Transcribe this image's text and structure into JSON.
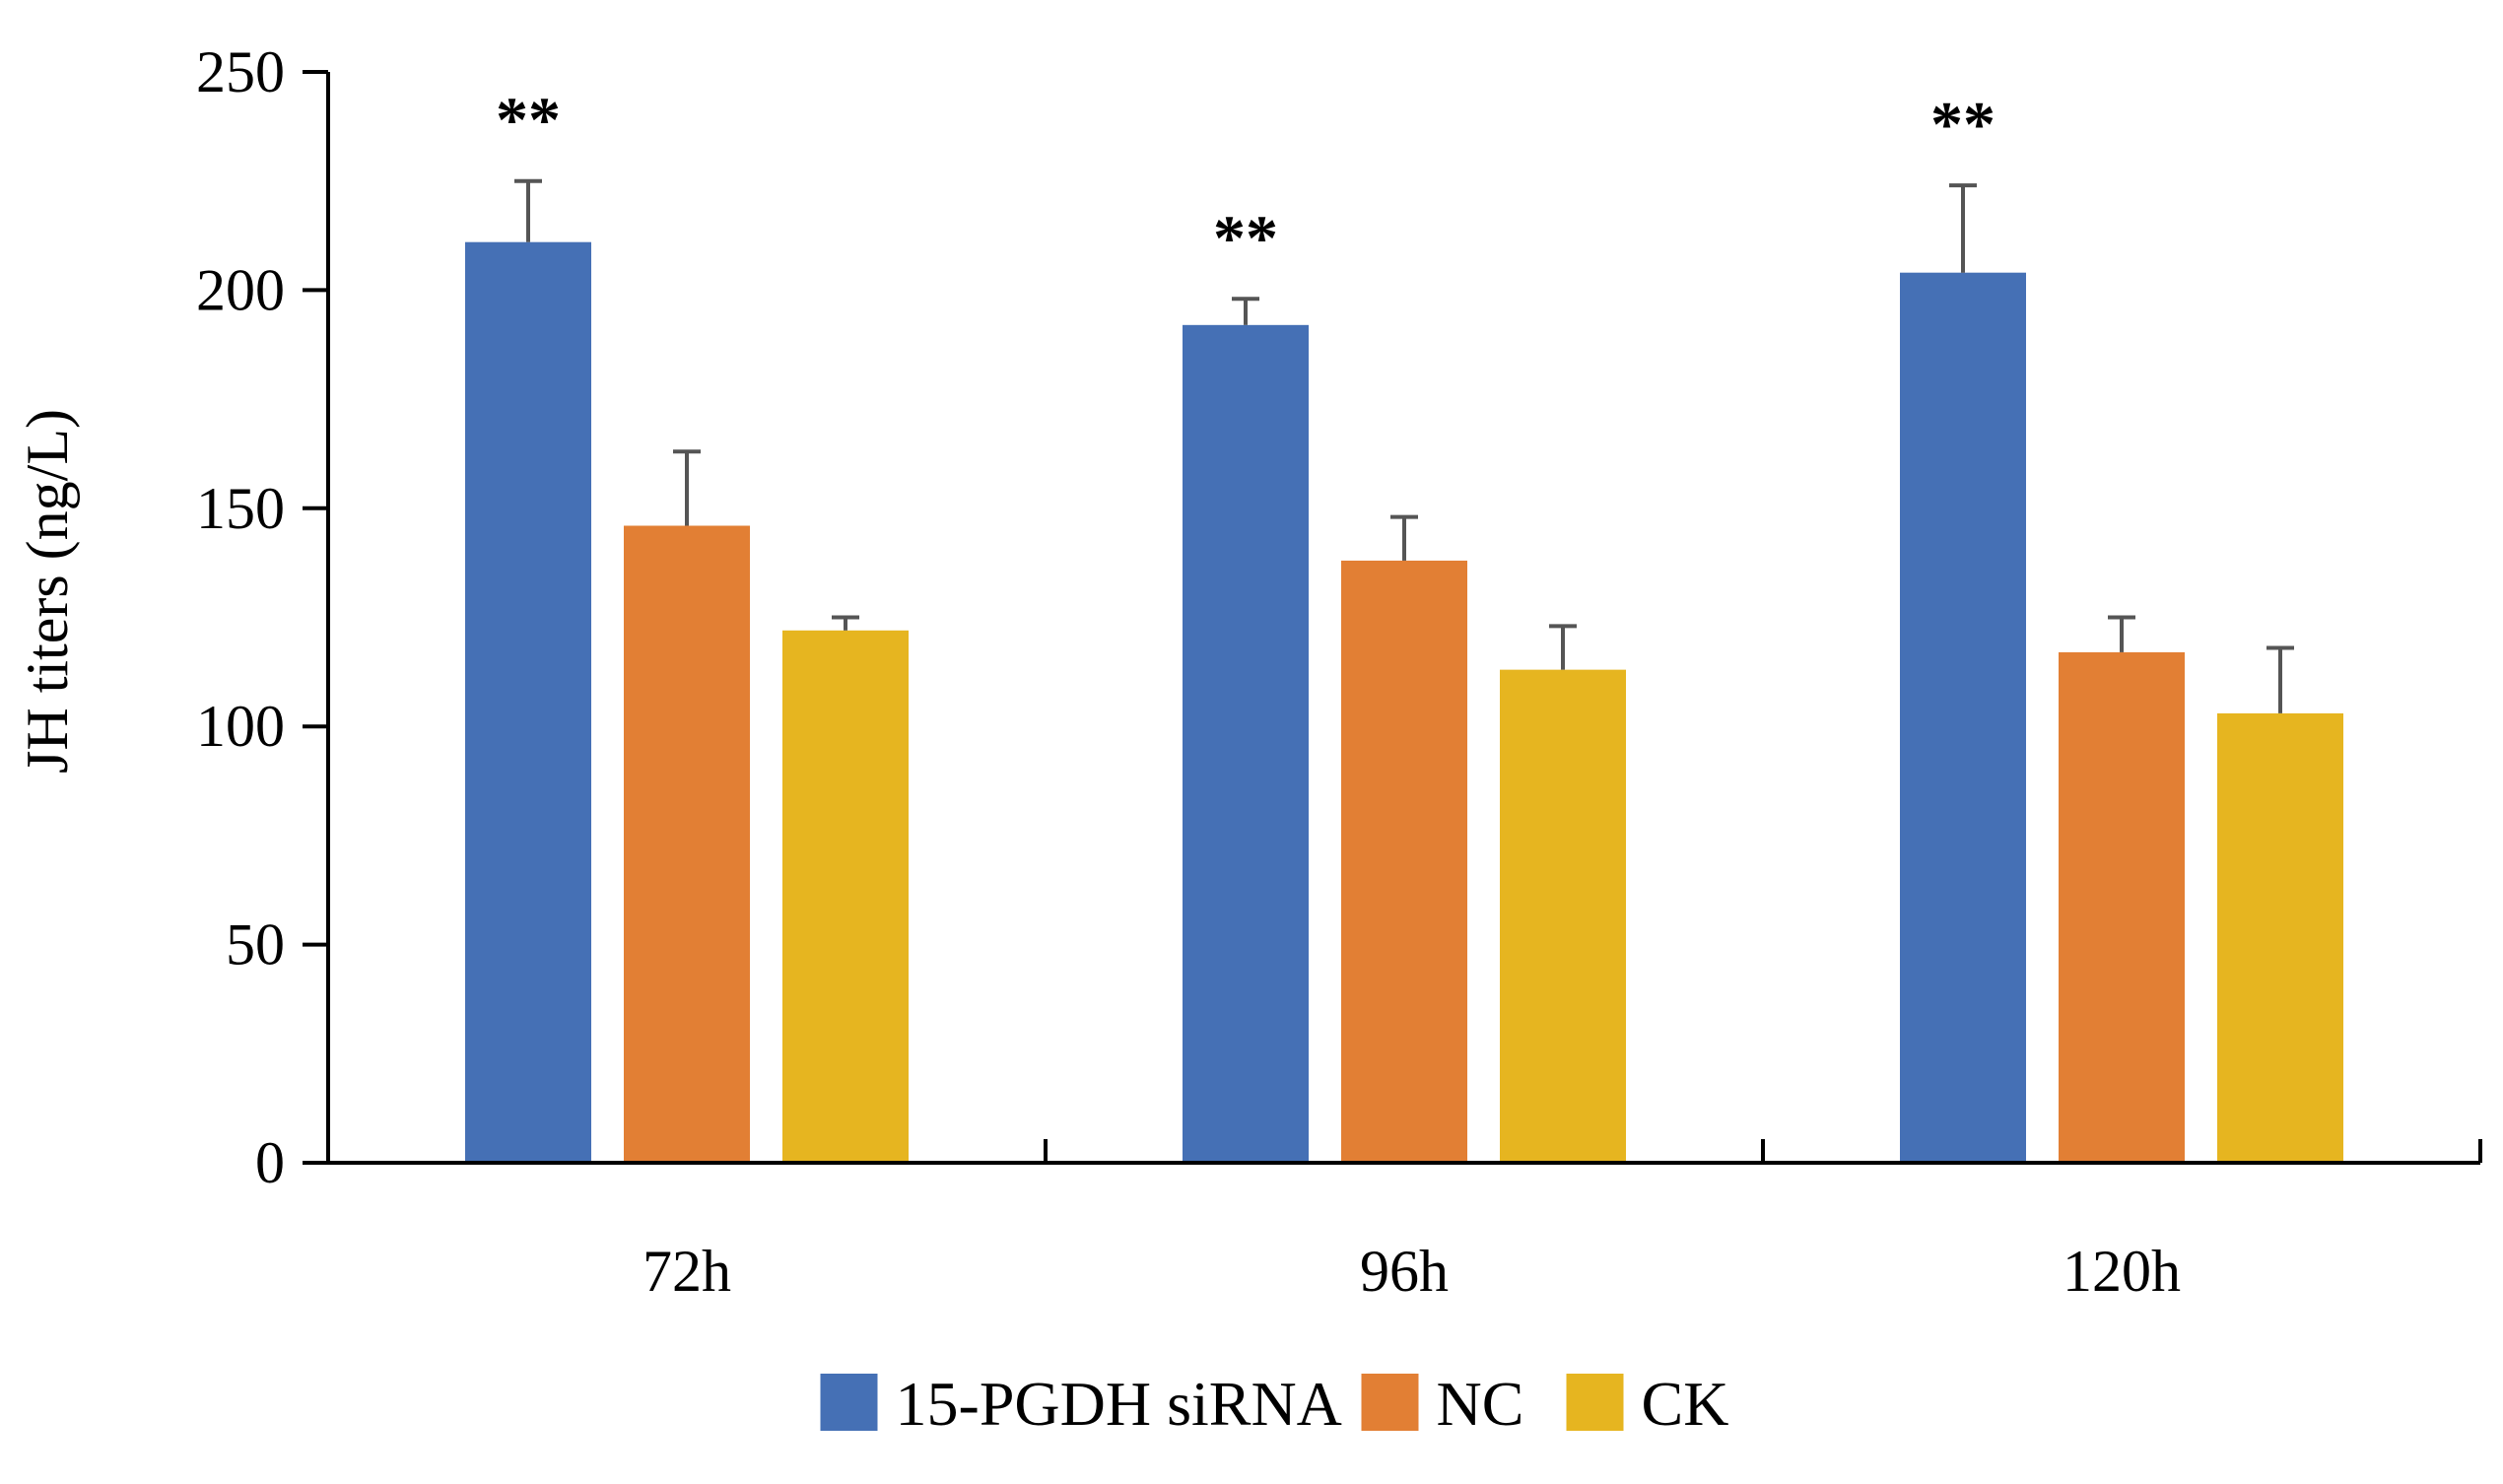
{
  "chart_data": {
    "type": "bar",
    "title": "",
    "xlabel": "",
    "ylabel": "JH titers (ng/L)",
    "ylim": [
      0,
      250
    ],
    "yticks": [
      0,
      50,
      100,
      150,
      200,
      250
    ],
    "categories": [
      "72h",
      "96h",
      "120h"
    ],
    "grid": false,
    "legend_position": "bottom",
    "series": [
      {
        "name": "15-PGDH siRNA",
        "color": "#4570b5",
        "values": [
          211,
          192,
          204
        ],
        "errors": [
          14,
          6,
          20
        ],
        "significance": [
          "**",
          "**",
          "**"
        ]
      },
      {
        "name": "NC",
        "color": "#e27f34",
        "values": [
          146,
          138,
          117
        ],
        "errors": [
          17,
          10,
          8
        ],
        "significance": [
          "",
          "",
          ""
        ]
      },
      {
        "name": "CK",
        "color": "#e6b520",
        "values": [
          122,
          113,
          103
        ],
        "errors": [
          3,
          10,
          15
        ],
        "significance": [
          "",
          "",
          ""
        ]
      }
    ]
  }
}
